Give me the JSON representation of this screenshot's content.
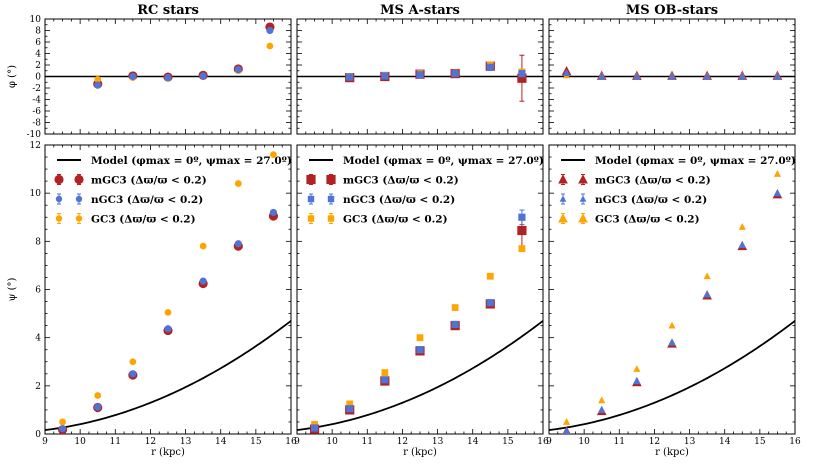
{
  "colors": {
    "mGC3": "#b22222",
    "nGC3": "#4f74d6",
    "GC3": "#ffa500",
    "model": "#000000"
  },
  "chart_data": [
    {
      "type": "scatter",
      "title": "RC stars",
      "xlabel": "",
      "ylabel": "φ (°)",
      "xlim": [
        9,
        16
      ],
      "ylim": [
        -10,
        10
      ],
      "xticks": [
        9,
        10,
        11,
        12,
        13,
        14,
        15,
        16
      ],
      "yticks": [
        -10,
        -8,
        -6,
        -4,
        -2,
        0,
        2,
        4,
        6,
        8,
        10
      ],
      "hline": 0,
      "marker": "circle",
      "series": [
        {
          "name": "mGC3",
          "x": [
            10.5,
            11.5,
            12.5,
            13.5,
            14.5,
            15.4
          ],
          "y": [
            -1.3,
            0.1,
            -0.1,
            0.2,
            1.3,
            8.6
          ]
        },
        {
          "name": "nGC3",
          "x": [
            10.5,
            11.5,
            12.5,
            13.5,
            14.5,
            15.4
          ],
          "y": [
            -1.5,
            0.0,
            -0.2,
            0.1,
            1.2,
            8.0
          ]
        },
        {
          "name": "GC3",
          "x": [
            10.5,
            11.5,
            12.5,
            13.5,
            14.5,
            15.4
          ],
          "y": [
            -0.5,
            -0.2,
            -0.3,
            0.1,
            1.0,
            5.3
          ]
        }
      ]
    },
    {
      "type": "scatter",
      "title": "MS A-stars",
      "xlabel": "",
      "ylabel": "",
      "xlim": [
        9,
        16
      ],
      "ylim": [
        -10,
        10
      ],
      "xticks": [
        9,
        10,
        11,
        12,
        13,
        14,
        15,
        16
      ],
      "yticks": [
        -10,
        -8,
        -6,
        -4,
        -2,
        0,
        2,
        4,
        6,
        8,
        10
      ],
      "hline": 0,
      "marker": "square",
      "series": [
        {
          "name": "mGC3",
          "x": [
            10.5,
            11.5,
            12.5,
            13.5,
            14.5,
            15.4
          ],
          "y": [
            -0.2,
            0.0,
            0.4,
            0.5,
            1.8,
            -0.3
          ],
          "err": [
            0,
            0,
            0,
            0,
            0,
            4.0
          ]
        },
        {
          "name": "nGC3",
          "x": [
            10.5,
            11.5,
            12.5,
            13.5,
            14.5,
            15.4
          ],
          "y": [
            -0.1,
            0.1,
            0.3,
            0.5,
            1.6,
            0.5
          ]
        },
        {
          "name": "GC3",
          "x": [
            10.5,
            11.5,
            12.5,
            13.5,
            14.5,
            15.4
          ],
          "y": [
            0.0,
            0.2,
            0.5,
            0.6,
            2.0,
            0.8
          ]
        }
      ]
    },
    {
      "type": "scatter",
      "title": "MS OB-stars",
      "xlabel": "",
      "ylabel": "",
      "xlim": [
        9,
        16
      ],
      "ylim": [
        -10,
        10
      ],
      "xticks": [
        9,
        10,
        11,
        12,
        13,
        14,
        15,
        16
      ],
      "yticks": [
        -10,
        -8,
        -6,
        -4,
        -2,
        0,
        2,
        4,
        6,
        8,
        10
      ],
      "hline": 0,
      "marker": "triangle",
      "series": [
        {
          "name": "mGC3",
          "x": [
            9.5,
            10.5,
            11.5,
            12.5,
            13.5,
            14.5,
            15.5
          ],
          "y": [
            0.9,
            0.1,
            0.1,
            0.1,
            0.1,
            0.1,
            0.1
          ]
        },
        {
          "name": "nGC3",
          "x": [
            9.5,
            10.5,
            11.5,
            12.5,
            13.5,
            14.5,
            15.5
          ],
          "y": [
            0.6,
            0.0,
            0.0,
            0.0,
            0.0,
            0.0,
            0.0
          ]
        },
        {
          "name": "GC3",
          "x": [
            9.5,
            10.5,
            11.5,
            12.5,
            13.5,
            14.5,
            15.5
          ],
          "y": [
            0.2,
            0.1,
            0.1,
            0.1,
            0.1,
            0.1,
            0.1
          ]
        }
      ]
    },
    {
      "type": "scatter",
      "title": "",
      "xlabel": "r (kpc)",
      "ylabel": "ψ (°)",
      "xlim": [
        9,
        16
      ],
      "ylim": [
        0,
        12
      ],
      "xticks": [
        9,
        10,
        11,
        12,
        13,
        14,
        15,
        16
      ],
      "yticks": [
        0,
        2,
        4,
        6,
        8,
        10,
        12
      ],
      "marker": "circle",
      "model": {
        "label": "Model (φmax = 0º, ψmax = 27.0º)",
        "x0": 7.7,
        "x1": 16.3,
        "coef": 0.0675
      },
      "legend": [
        {
          "marker": "model",
          "label": "Model (φmax = 0º, ψmax = 27.0º)"
        },
        {
          "marker": "circle",
          "series": "mGC3",
          "label": "mGC3 (Δϖ/ϖ < 0.2)"
        },
        {
          "marker": "circle-small",
          "series": "nGC3",
          "label": "nGC3 (Δϖ/ϖ < 0.2)"
        },
        {
          "marker": "circle-small",
          "series": "GC3",
          "label": "GC3 (Δϖ/ϖ < 0.2)"
        }
      ],
      "series": [
        {
          "name": "mGC3",
          "x": [
            9.5,
            10.5,
            11.5,
            12.5,
            13.5,
            14.5,
            15.5
          ],
          "y": [
            0.18,
            1.1,
            2.45,
            4.3,
            6.25,
            7.8,
            9.05
          ]
        },
        {
          "name": "nGC3",
          "x": [
            9.5,
            10.5,
            11.5,
            12.5,
            13.5,
            14.5,
            15.5
          ],
          "y": [
            0.22,
            1.12,
            2.5,
            4.37,
            6.35,
            7.9,
            9.2
          ]
        },
        {
          "name": "GC3",
          "x": [
            9.5,
            10.5,
            11.5,
            12.5,
            13.5,
            14.5,
            15.5
          ],
          "y": [
            0.5,
            1.6,
            3.0,
            5.05,
            7.8,
            10.4,
            11.6
          ]
        }
      ]
    },
    {
      "type": "scatter",
      "title": "",
      "xlabel": "r (kpc)",
      "ylabel": "",
      "xlim": [
        9,
        16
      ],
      "ylim": [
        0,
        12
      ],
      "xticks": [
        9,
        10,
        11,
        12,
        13,
        14,
        15,
        16
      ],
      "yticks": [
        0,
        2,
        4,
        6,
        8,
        10,
        12
      ],
      "marker": "square",
      "model": {
        "label": "Model (φmax = 0º, ψmax = 27.0º)",
        "x0": 7.7,
        "x1": 16.3,
        "coef": 0.0675
      },
      "legend": [
        {
          "marker": "model",
          "label": "Model (φmax = 0º, ψmax = 27.0º)"
        },
        {
          "marker": "square",
          "series": "mGC3",
          "label": "mGC3 (Δϖ/ϖ < 0.2)"
        },
        {
          "marker": "square-small",
          "series": "nGC3",
          "label": "nGC3 (Δϖ/ϖ < 0.2)"
        },
        {
          "marker": "square-small",
          "series": "GC3",
          "label": "GC3 (Δϖ/ϖ < 0.2)"
        }
      ],
      "series": [
        {
          "name": "mGC3",
          "x": [
            9.5,
            10.5,
            11.5,
            12.5,
            13.5,
            14.5,
            15.4
          ],
          "y": [
            0.2,
            1.0,
            2.2,
            3.45,
            4.5,
            5.4,
            8.45
          ],
          "err": [
            0,
            0,
            0,
            0,
            0,
            0,
            0.65
          ]
        },
        {
          "name": "nGC3",
          "x": [
            9.5,
            10.5,
            11.5,
            12.5,
            13.5,
            14.5,
            15.4
          ],
          "y": [
            0.25,
            1.05,
            2.25,
            3.5,
            4.55,
            5.45,
            9.0
          ],
          "err": [
            0,
            0,
            0,
            0,
            0,
            0,
            0.3
          ]
        },
        {
          "name": "GC3",
          "x": [
            9.5,
            10.5,
            11.5,
            12.5,
            13.5,
            14.5,
            15.4
          ],
          "y": [
            0.4,
            1.25,
            2.55,
            4.0,
            5.25,
            6.55,
            7.7
          ]
        }
      ]
    },
    {
      "type": "scatter",
      "title": "",
      "xlabel": "r (kpc)",
      "ylabel": "",
      "xlim": [
        9,
        16
      ],
      "ylim": [
        0,
        12
      ],
      "xticks": [
        9,
        10,
        11,
        12,
        13,
        14,
        15,
        16
      ],
      "yticks": [
        0,
        2,
        4,
        6,
        8,
        10,
        12
      ],
      "marker": "triangle",
      "model": {
        "label": "Model (φmax = 0º, ψmax = 27.0º)",
        "x0": 7.7,
        "x1": 16.3,
        "coef": 0.0675
      },
      "legend": [
        {
          "marker": "model",
          "label": "Model (φmax = 0º, ψmax = 27.0º)"
        },
        {
          "marker": "triangle",
          "series": "mGC3",
          "label": "mGC3 (Δϖ/ϖ < 0.2)"
        },
        {
          "marker": "triangle-small",
          "series": "nGC3",
          "label": "nGC3 (Δϖ/ϖ < 0.2)"
        },
        {
          "marker": "triangle",
          "series": "GC3",
          "label": "GC3 (Δϖ/ϖ < 0.2)"
        }
      ],
      "series": [
        {
          "name": "mGC3",
          "x": [
            9.5,
            10.5,
            11.5,
            12.5,
            13.5,
            14.5,
            15.5
          ],
          "y": [
            0.1,
            0.95,
            2.15,
            3.75,
            5.75,
            7.8,
            9.95
          ]
        },
        {
          "name": "nGC3",
          "x": [
            9.5,
            10.5,
            11.5,
            12.5,
            13.5,
            14.5,
            15.5
          ],
          "y": [
            0.12,
            1.0,
            2.2,
            3.8,
            5.8,
            7.85,
            10.0
          ]
        },
        {
          "name": "GC3",
          "x": [
            9.5,
            10.5,
            11.5,
            12.5,
            13.5,
            14.5,
            15.5
          ],
          "y": [
            0.5,
            1.4,
            2.7,
            4.5,
            6.55,
            8.6,
            10.8
          ]
        }
      ]
    }
  ]
}
